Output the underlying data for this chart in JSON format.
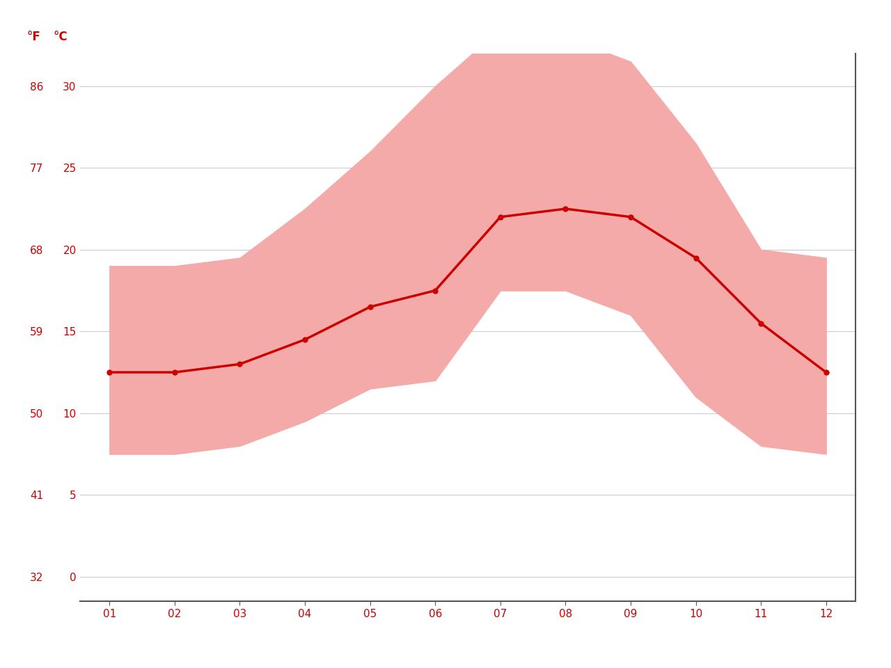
{
  "months": [
    1,
    2,
    3,
    4,
    5,
    6,
    7,
    8,
    9,
    10,
    11,
    12
  ],
  "month_labels": [
    "01",
    "02",
    "03",
    "04",
    "05",
    "06",
    "07",
    "08",
    "09",
    "10",
    "11",
    "12"
  ],
  "avg_c": [
    12.5,
    12.5,
    13.0,
    14.5,
    16.5,
    17.5,
    22.0,
    22.5,
    22.0,
    19.5,
    15.5,
    12.5
  ],
  "high_c": [
    19.0,
    19.0,
    19.5,
    22.5,
    26.0,
    30.0,
    33.5,
    33.0,
    31.5,
    26.5,
    20.0,
    19.5
  ],
  "low_c": [
    7.5,
    7.5,
    8.0,
    9.5,
    11.5,
    12.0,
    17.5,
    17.5,
    16.0,
    11.0,
    8.0,
    7.5
  ],
  "yticks_c": [
    0,
    5,
    10,
    15,
    20,
    25,
    30
  ],
  "yticks_f": [
    32,
    41,
    50,
    59,
    68,
    77,
    86
  ],
  "ylim_c": [
    -1.5,
    32
  ],
  "xlim": [
    0.55,
    12.45
  ],
  "line_color": "#cc0000",
  "band_color": "#f5aaaa",
  "grid_color": "#cccccc",
  "axis_color": "#cc0000",
  "background_color": "#ffffff",
  "spine_color": "#555555"
}
